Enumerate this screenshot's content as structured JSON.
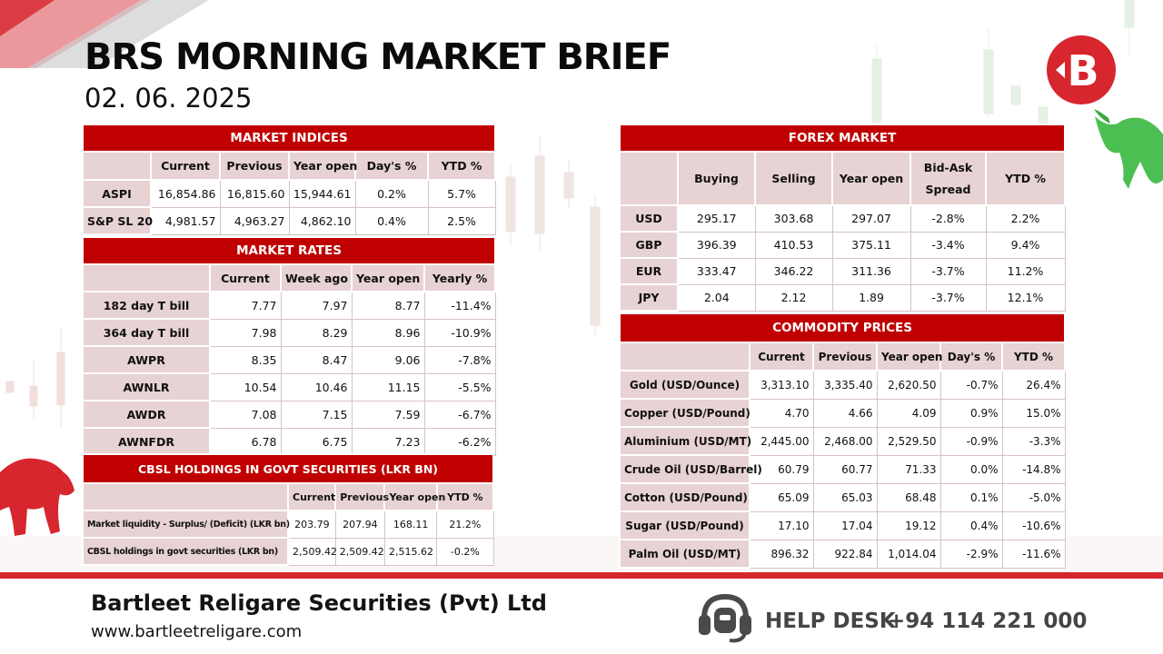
{
  "header": {
    "title": "BRS MORNING MARKET BRIEF",
    "date": "02. 06. 2025"
  },
  "colors": {
    "accent": "#c00000",
    "header_fill": "#e7d2d4",
    "footer_band": "#d7262e"
  },
  "market_indices": {
    "title": "MARKET INDICES",
    "columns": [
      "Current",
      "Previous",
      "Year open",
      "Day's %",
      "YTD %"
    ],
    "rows": [
      {
        "label": "ASPI",
        "values": [
          "16,854.86",
          "16,815.60",
          "15,944.61",
          "0.2%",
          "5.7%"
        ]
      },
      {
        "label": "S&P SL 20",
        "values": [
          "4,981.57",
          "4,963.27",
          "4,862.10",
          "0.4%",
          "2.5%"
        ]
      }
    ]
  },
  "market_rates": {
    "title": "MARKET RATES",
    "columns": [
      "Current",
      "Week ago",
      "Year open",
      "Yearly %"
    ],
    "rows": [
      {
        "label": "182 day T bill",
        "values": [
          "7.77",
          "7.97",
          "8.77",
          "-11.4%"
        ]
      },
      {
        "label": "364 day T bill",
        "values": [
          "7.98",
          "8.29",
          "8.96",
          "-10.9%"
        ]
      },
      {
        "label": "AWPR",
        "values": [
          "8.35",
          "8.47",
          "9.06",
          "-7.8%"
        ]
      },
      {
        "label": "AWNLR",
        "values": [
          "10.54",
          "10.46",
          "11.15",
          "-5.5%"
        ]
      },
      {
        "label": "AWDR",
        "values": [
          "7.08",
          "7.15",
          "7.59",
          "-6.7%"
        ]
      },
      {
        "label": "AWNFDR",
        "values": [
          "6.78",
          "6.75",
          "7.23",
          "-6.2%"
        ]
      }
    ]
  },
  "cbsl_holdings": {
    "title": "CBSL HOLDINGS IN GOVT SECURITIES (LKR BN)",
    "columns": [
      "Current",
      "Previous",
      "Year open",
      "YTD %"
    ],
    "rows": [
      {
        "label": "Market liquidity - Surplus/ (Deficit) (LKR bn)",
        "values": [
          "203.79",
          "207.94",
          "168.11",
          "21.2%"
        ]
      },
      {
        "label": "CBSL holdings in govt securities (LKR bn)",
        "values": [
          "2,509.42",
          "2,509.42",
          "2,515.62",
          "-0.2%"
        ]
      }
    ]
  },
  "forex_market": {
    "title": "FOREX MARKET",
    "columns": [
      "Buying",
      "Selling",
      "Year open",
      "Bid-Ask Spread",
      "YTD %"
    ],
    "rows": [
      {
        "label": "USD",
        "values": [
          "295.17",
          "303.68",
          "297.07",
          "-2.8%",
          "2.2%"
        ]
      },
      {
        "label": "GBP",
        "values": [
          "396.39",
          "410.53",
          "375.11",
          "-3.4%",
          "9.4%"
        ]
      },
      {
        "label": "EUR",
        "values": [
          "333.47",
          "346.22",
          "311.36",
          "-3.7%",
          "11.2%"
        ]
      },
      {
        "label": "JPY",
        "values": [
          "2.04",
          "2.12",
          "1.89",
          "-3.7%",
          "12.1%"
        ]
      }
    ]
  },
  "commodity_prices": {
    "title": "COMMODITY PRICES",
    "columns": [
      "Current",
      "Previous",
      "Year open",
      "Day's %",
      "YTD %"
    ],
    "rows": [
      {
        "label": "Gold (USD/Ounce)",
        "values": [
          "3,313.10",
          "3,335.40",
          "2,620.50",
          "-0.7%",
          "26.4%"
        ]
      },
      {
        "label": "Copper (USD/Pound)",
        "values": [
          "4.70",
          "4.66",
          "4.09",
          "0.9%",
          "15.0%"
        ]
      },
      {
        "label": "Aluminium (USD/MT)",
        "values": [
          "2,445.00",
          "2,468.00",
          "2,529.50",
          "-0.9%",
          "-3.3%"
        ]
      },
      {
        "label": "Crude Oil (USD/Barrel)",
        "values": [
          "60.79",
          "60.77",
          "71.33",
          "0.0%",
          "-14.8%"
        ]
      },
      {
        "label": "Cotton (USD/Pound)",
        "values": [
          "65.09",
          "65.03",
          "68.48",
          "0.1%",
          "-5.0%"
        ]
      },
      {
        "label": "Sugar (USD/Pound)",
        "values": [
          "17.10",
          "17.04",
          "19.12",
          "0.4%",
          "-10.6%"
        ]
      },
      {
        "label": "Palm Oil (USD/MT)",
        "values": [
          "896.32",
          "922.84",
          "1,014.04",
          "-2.9%",
          "-11.6%"
        ]
      }
    ]
  },
  "footer": {
    "company": "Bartleet Religare Securities (Pvt) Ltd",
    "website": "www.bartleetreligare.com",
    "helpdesk_label": "HELP DESK",
    "phone": "+94 114 221 000"
  },
  "icons": [
    "brs-logo-icon",
    "bull-icon",
    "bear-icon",
    "headset-icon"
  ]
}
